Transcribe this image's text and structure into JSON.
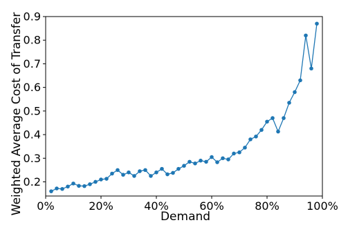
{
  "chart_data": {
    "type": "line",
    "xlabel": "Demand",
    "ylabel": "Weighted Average Cost of Transfer",
    "xlim": [
      0,
      1
    ],
    "ylim": [
      0.14,
      0.9
    ],
    "x_ticks": [
      {
        "value": 0,
        "label": "0%"
      },
      {
        "value": 0.2,
        "label": "20%"
      },
      {
        "value": 0.4,
        "label": "40%"
      },
      {
        "value": 0.6,
        "label": "60%"
      },
      {
        "value": 0.8,
        "label": "80%"
      },
      {
        "value": 1.0,
        "label": "100%"
      }
    ],
    "y_ticks": [
      {
        "value": 0.2,
        "label": "0.2"
      },
      {
        "value": 0.3,
        "label": "0.3"
      },
      {
        "value": 0.4,
        "label": "0.4"
      },
      {
        "value": 0.5,
        "label": "0.5"
      },
      {
        "value": 0.6,
        "label": "0.6"
      },
      {
        "value": 0.7,
        "label": "0.7"
      },
      {
        "value": 0.8,
        "label": "0.8"
      },
      {
        "value": 0.9,
        "label": "0.9"
      }
    ],
    "grid": false,
    "line_color": "#1f77b4",
    "series": [
      {
        "x": [
          0.02,
          0.04,
          0.06,
          0.08,
          0.1,
          0.12,
          0.14,
          0.16,
          0.18,
          0.2,
          0.22,
          0.24,
          0.26,
          0.28,
          0.3,
          0.32,
          0.34,
          0.36,
          0.38,
          0.4,
          0.42,
          0.44,
          0.46,
          0.48,
          0.5,
          0.52,
          0.54,
          0.56,
          0.58,
          0.6,
          0.62,
          0.64,
          0.66,
          0.68,
          0.7,
          0.72,
          0.74,
          0.76,
          0.78,
          0.8,
          0.82,
          0.84,
          0.86,
          0.88,
          0.9,
          0.92,
          0.94,
          0.96,
          0.98
        ],
        "y": [
          0.16,
          0.172,
          0.17,
          0.18,
          0.193,
          0.183,
          0.182,
          0.19,
          0.2,
          0.21,
          0.213,
          0.235,
          0.25,
          0.23,
          0.24,
          0.225,
          0.245,
          0.25,
          0.225,
          0.24,
          0.255,
          0.232,
          0.238,
          0.255,
          0.268,
          0.285,
          0.278,
          0.29,
          0.285,
          0.305,
          0.283,
          0.3,
          0.295,
          0.32,
          0.325,
          0.345,
          0.38,
          0.392,
          0.42,
          0.455,
          0.47,
          0.413,
          0.47,
          0.535,
          0.58,
          0.63,
          0.82,
          0.68,
          0.87
        ]
      }
    ]
  }
}
